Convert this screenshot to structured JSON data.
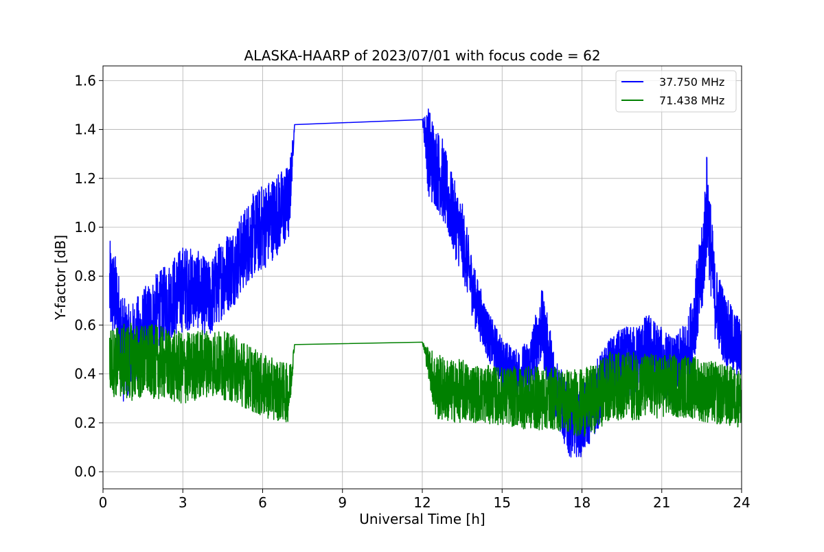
{
  "chart_data": {
    "type": "line",
    "title": "ALASKA-HAARP of 2023/07/01 with focus code = 62",
    "xlabel": "Universal Time [h]",
    "ylabel": "Y-factor [dB]",
    "xlim": [
      0,
      24
    ],
    "ylim": [
      -0.07,
      1.66
    ],
    "xticks": [
      0,
      3,
      6,
      9,
      12,
      15,
      18,
      21,
      24
    ],
    "yticks": [
      0.0,
      0.2,
      0.4,
      0.6,
      0.8,
      1.0,
      1.2,
      1.4,
      1.6
    ],
    "xtick_labels": [
      "0",
      "3",
      "6",
      "9",
      "12",
      "15",
      "18",
      "21",
      "24"
    ],
    "ytick_labels": [
      "0.0",
      "0.2",
      "0.4",
      "0.6",
      "0.8",
      "1.0",
      "1.2",
      "1.4",
      "1.6"
    ],
    "grid": true,
    "legend_position": "top-right",
    "series": [
      {
        "name": "37.750 MHz",
        "color": "#0000ff",
        "x": [
          0.25,
          0.5,
          0.75,
          1.0,
          1.5,
          2.0,
          2.5,
          3.0,
          3.5,
          4.0,
          4.5,
          5.0,
          5.5,
          6.0,
          6.5,
          7.0,
          7.2,
          12.0,
          12.25,
          12.5,
          12.75,
          13.0,
          13.5,
          14.0,
          14.5,
          15.0,
          15.5,
          16.0,
          16.5,
          17.0,
          17.5,
          18.0,
          18.5,
          19.0,
          19.5,
          20.0,
          20.5,
          21.0,
          21.5,
          22.0,
          22.5,
          22.7,
          23.0,
          23.5,
          24.0
        ],
        "y": [
          0.75,
          0.7,
          0.5,
          0.5,
          0.55,
          0.65,
          0.7,
          0.75,
          0.75,
          0.7,
          0.8,
          0.85,
          0.95,
          1.0,
          1.05,
          1.1,
          1.42,
          1.44,
          1.3,
          1.25,
          1.2,
          1.1,
          0.95,
          0.7,
          0.55,
          0.45,
          0.4,
          0.42,
          0.6,
          0.35,
          0.2,
          0.2,
          0.3,
          0.4,
          0.45,
          0.45,
          0.5,
          0.45,
          0.4,
          0.5,
          0.8,
          1.1,
          0.7,
          0.55,
          0.5
        ],
        "noise": [
          0.2,
          0.18,
          0.22,
          0.18,
          0.2,
          0.16,
          0.16,
          0.18,
          0.16,
          0.16,
          0.17,
          0.16,
          0.17,
          0.18,
          0.17,
          0.16,
          0.0,
          0.0,
          0.2,
          0.17,
          0.17,
          0.16,
          0.15,
          0.12,
          0.1,
          0.1,
          0.1,
          0.12,
          0.15,
          0.14,
          0.14,
          0.14,
          0.15,
          0.14,
          0.14,
          0.15,
          0.15,
          0.14,
          0.15,
          0.14,
          0.2,
          0.22,
          0.16,
          0.15,
          0.12
        ]
      },
      {
        "name": "71.438 MHz",
        "color": "#008000",
        "x": [
          0.25,
          1.0,
          2.0,
          3.0,
          4.0,
          5.0,
          6.0,
          7.0,
          7.2,
          12.0,
          12.5,
          13.0,
          13.5,
          14.0,
          15.0,
          16.0,
          17.0,
          18.0,
          18.5,
          19.0,
          20.0,
          21.0,
          22.0,
          23.0,
          24.0
        ],
        "y": [
          0.45,
          0.45,
          0.45,
          0.42,
          0.45,
          0.42,
          0.35,
          0.32,
          0.52,
          0.53,
          0.35,
          0.33,
          0.33,
          0.32,
          0.31,
          0.3,
          0.3,
          0.28,
          0.3,
          0.35,
          0.35,
          0.35,
          0.35,
          0.32,
          0.3
        ],
        "noise": [
          0.14,
          0.16,
          0.15,
          0.15,
          0.14,
          0.14,
          0.13,
          0.12,
          0.0,
          0.0,
          0.14,
          0.13,
          0.13,
          0.12,
          0.12,
          0.13,
          0.13,
          0.14,
          0.14,
          0.14,
          0.14,
          0.13,
          0.13,
          0.13,
          0.12
        ]
      }
    ]
  }
}
